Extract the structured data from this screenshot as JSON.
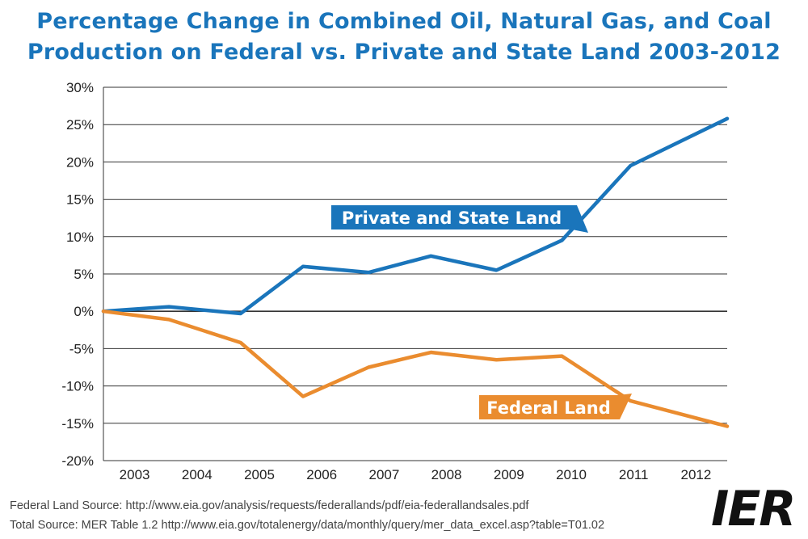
{
  "chart_data": {
    "type": "line",
    "title_lines": [
      "Percentage Change in Combined Oil, Natural Gas, and Coal",
      "Production on Federal vs. Private and State Land 2003-2012"
    ],
    "categories": [
      "2003",
      "2004",
      "2005",
      "2006",
      "2007",
      "2008",
      "2009",
      "2010",
      "2011",
      "2012"
    ],
    "y_tick_labels": [
      "30%",
      "25%",
      "20%",
      "15%",
      "10%",
      "5%",
      "0%",
      "-5%",
      "-10%",
      "-15%",
      "-20%"
    ],
    "ylim": [
      -20,
      30
    ],
    "y_step": 5,
    "grid": true,
    "series": [
      {
        "name": "Private and State Land",
        "color": "#1a75bb",
        "x": [
          2002.6,
          2003.55,
          2004.7,
          2005.7,
          2006.75,
          2007.75,
          2008.8,
          2009.85,
          2010.95,
          2012.0
        ],
        "values": [
          0.0,
          0.6,
          -0.3,
          6.0,
          5.2,
          7.4,
          5.5,
          9.5,
          19.5,
          25.8
        ]
      },
      {
        "name": "Federal Land",
        "color": "#ea8c2f",
        "x": [
          2002.6,
          2003.55,
          2004.7,
          2005.7,
          2006.75,
          2007.75,
          2008.8,
          2009.85,
          2010.95,
          2012.0
        ],
        "values": [
          0.0,
          -1.1,
          -4.2,
          -11.4,
          -7.5,
          -5.5,
          -6.5,
          -6.0,
          -12.0,
          -15.4
        ]
      }
    ]
  },
  "sources": [
    "Federal Land Source: http://www.eia.gov/analysis/requests/federallands/pdf/eia-federallandsales.pdf",
    "Total Source: MER Table 1.2  http://www.eia.gov/totalenergy/data/monthly/query/mer_data_excel.asp?table=T01.02"
  ],
  "logo_text": "IER",
  "colors": {
    "title": "#1a75bb",
    "grid": "#333333"
  }
}
